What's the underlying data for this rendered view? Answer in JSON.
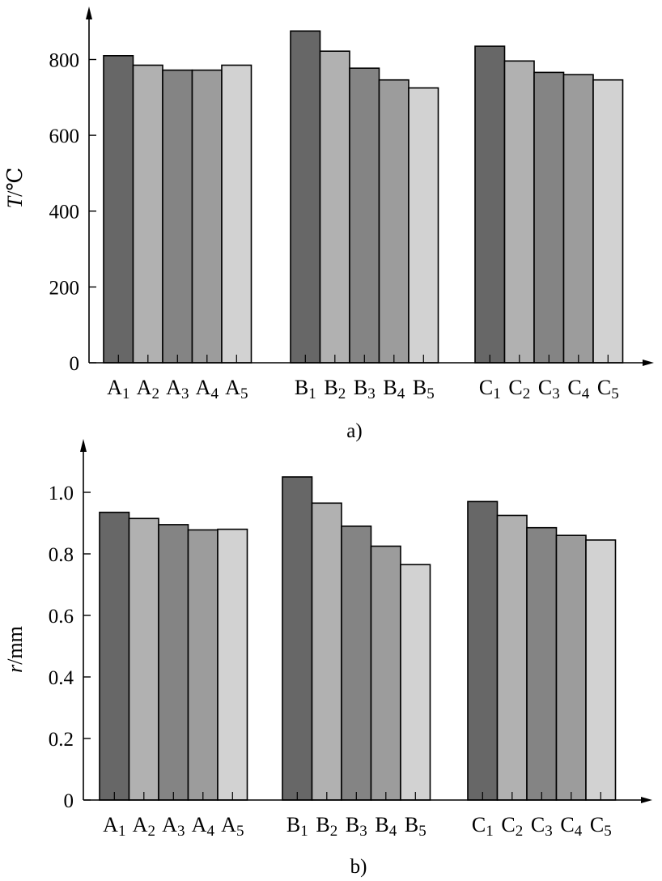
{
  "chart_data": [
    {
      "type": "bar",
      "panel_label": "a)",
      "ylabel_var": "T",
      "ylabel_unit": "/℃",
      "ylim": [
        0,
        880
      ],
      "yticks": [
        "0",
        "200",
        "400",
        "600",
        "800"
      ],
      "ytick_values": [
        0,
        200,
        400,
        600,
        800
      ],
      "grid": false,
      "groups": [
        {
          "name": "A",
          "labels": [
            {
              "letter": "A",
              "sub": "1"
            },
            {
              "letter": "A",
              "sub": "2"
            },
            {
              "letter": "A",
              "sub": "3"
            },
            {
              "letter": "A",
              "sub": "4"
            },
            {
              "letter": "A",
              "sub": "5"
            }
          ],
          "values": [
            810,
            785,
            772,
            772,
            785
          ]
        },
        {
          "name": "B",
          "labels": [
            {
              "letter": "B",
              "sub": "1"
            },
            {
              "letter": "B",
              "sub": "2"
            },
            {
              "letter": "B",
              "sub": "3"
            },
            {
              "letter": "B",
              "sub": "4"
            },
            {
              "letter": "B",
              "sub": "5"
            }
          ],
          "values": [
            875,
            822,
            777,
            746,
            725
          ]
        },
        {
          "name": "C",
          "labels": [
            {
              "letter": "C",
              "sub": "1"
            },
            {
              "letter": "C",
              "sub": "2"
            },
            {
              "letter": "C",
              "sub": "3"
            },
            {
              "letter": "C",
              "sub": "4"
            },
            {
              "letter": "C",
              "sub": "5"
            }
          ],
          "values": [
            835,
            796,
            766,
            760,
            746
          ]
        }
      ]
    },
    {
      "type": "bar",
      "panel_label": "b)",
      "ylabel_var": "r",
      "ylabel_unit": "/mm",
      "ylim": [
        0,
        1.1
      ],
      "yticks": [
        "0",
        "0.2",
        "0.4",
        "0.6",
        "0.8",
        "1.0"
      ],
      "ytick_values": [
        0,
        0.2,
        0.4,
        0.6,
        0.8,
        1.0
      ],
      "grid": false,
      "groups": [
        {
          "name": "A",
          "labels": [
            {
              "letter": "A",
              "sub": "1"
            },
            {
              "letter": "A",
              "sub": "2"
            },
            {
              "letter": "A",
              "sub": "3"
            },
            {
              "letter": "A",
              "sub": "4"
            },
            {
              "letter": "A",
              "sub": "5"
            }
          ],
          "values": [
            0.935,
            0.915,
            0.895,
            0.878,
            0.88
          ]
        },
        {
          "name": "B",
          "labels": [
            {
              "letter": "B",
              "sub": "1"
            },
            {
              "letter": "B",
              "sub": "2"
            },
            {
              "letter": "B",
              "sub": "3"
            },
            {
              "letter": "B",
              "sub": "4"
            },
            {
              "letter": "B",
              "sub": "5"
            }
          ],
          "values": [
            1.05,
            0.965,
            0.89,
            0.825,
            0.765
          ]
        },
        {
          "name": "C",
          "labels": [
            {
              "letter": "C",
              "sub": "1"
            },
            {
              "letter": "C",
              "sub": "2"
            },
            {
              "letter": "C",
              "sub": "3"
            },
            {
              "letter": "C",
              "sub": "4"
            },
            {
              "letter": "C",
              "sub": "5"
            }
          ],
          "values": [
            0.97,
            0.925,
            0.885,
            0.86,
            0.845
          ]
        }
      ]
    }
  ],
  "bar_colors": [
    "#676767",
    "#b1b1b1",
    "#848484",
    "#9c9c9c",
    "#d2d2d2"
  ],
  "axis_color": "#000000"
}
